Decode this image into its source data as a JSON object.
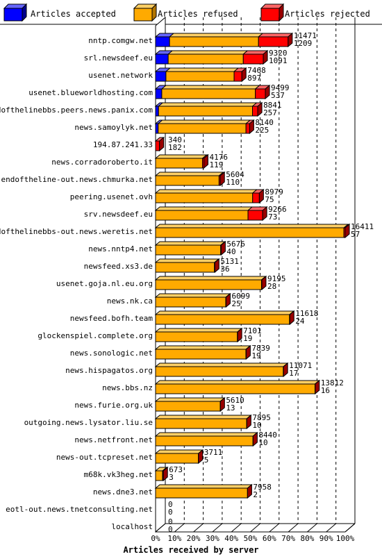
{
  "chart_data": {
    "type": "bar",
    "orientation": "horizontal",
    "stacked": true,
    "xlabel": "Articles received by server",
    "ylabel": "",
    "xlim": [
      0,
      100
    ],
    "x_ticks": [
      "0%",
      "10%",
      "20%",
      "30%",
      "40%",
      "50%",
      "60%",
      "70%",
      "80%",
      "90%",
      "100%"
    ],
    "legend_position": "top",
    "grid": "vertical dashed",
    "series": [
      {
        "name": "Articles accepted",
        "color": "#0000ff"
      },
      {
        "name": "Articles refused",
        "color": "#ffaa00"
      },
      {
        "name": "Articles rejected",
        "color": "#ff0000"
      }
    ],
    "categories": [
      "nntp.comgw.net",
      "srl.newsdeef.eu",
      "usenet.network",
      "usenet.blueworldhosting.com",
      "endofthelinebbs.peers.news.panix.com",
      "news.samoylyk.net",
      "194.87.241.33",
      "news.corradoroberto.it",
      "endoftheline-out.news.chmurka.net",
      "peering.usenet.ovh",
      "srv.newsdeef.eu",
      "endofthelinebbs-out.news.weretis.net",
      "news.nntp4.net",
      "newsfeed.xs3.de",
      "usenet.goja.nl.eu.org",
      "news.nk.ca",
      "newsfeed.bofh.team",
      "glockenspiel.complete.org",
      "news.sonologic.net",
      "news.hispagatos.org",
      "news.bbs.nz",
      "news.furie.org.uk",
      "outgoing.news.lysator.liu.se",
      "news.netfront.net",
      "news-out.tcpreset.net",
      "m68k.vk3heg.net",
      "news.dne3.net",
      "eotl-out.news.tnetconsulting.net",
      "localhost"
    ],
    "totals": [
      11471,
      9320,
      7468,
      9499,
      8841,
      8140,
      340,
      4176,
      5604,
      8979,
      9266,
      16411,
      5676,
      5131,
      9195,
      6099,
      11618,
      7101,
      7839,
      11071,
      13812,
      5610,
      7895,
      8440,
      3711,
      673,
      7958,
      0,
      0
    ],
    "second_values": [
      1209,
      1091,
      897,
      537,
      257,
      225,
      182,
      119,
      110,
      75,
      73,
      57,
      40,
      36,
      28,
      25,
      24,
      19,
      19,
      17,
      16,
      13,
      10,
      10,
      5,
      3,
      2,
      0,
      0
    ],
    "segments": {
      "accepted": [
        1209,
        1091,
        897,
        537,
        257,
        225,
        0,
        0,
        0,
        0,
        0,
        0,
        0,
        0,
        0,
        0,
        0,
        0,
        0,
        0,
        0,
        0,
        0,
        0,
        0,
        0,
        0,
        0,
        0
      ],
      "refused": [
        7700,
        6500,
        5900,
        8100,
        8130,
        7600,
        0,
        4057,
        5494,
        8400,
        8000,
        16300,
        5636,
        5095,
        9167,
        6074,
        11594,
        7082,
        7820,
        11054,
        13796,
        5597,
        7885,
        8430,
        3706,
        600,
        7956,
        0,
        0
      ],
      "rejected": [
        2562,
        1729,
        671,
        862,
        454,
        315,
        340,
        119,
        110,
        579,
        1266,
        111,
        40,
        36,
        28,
        25,
        24,
        19,
        19,
        17,
        16,
        13,
        10,
        10,
        5,
        73,
        2,
        0,
        0
      ]
    }
  }
}
